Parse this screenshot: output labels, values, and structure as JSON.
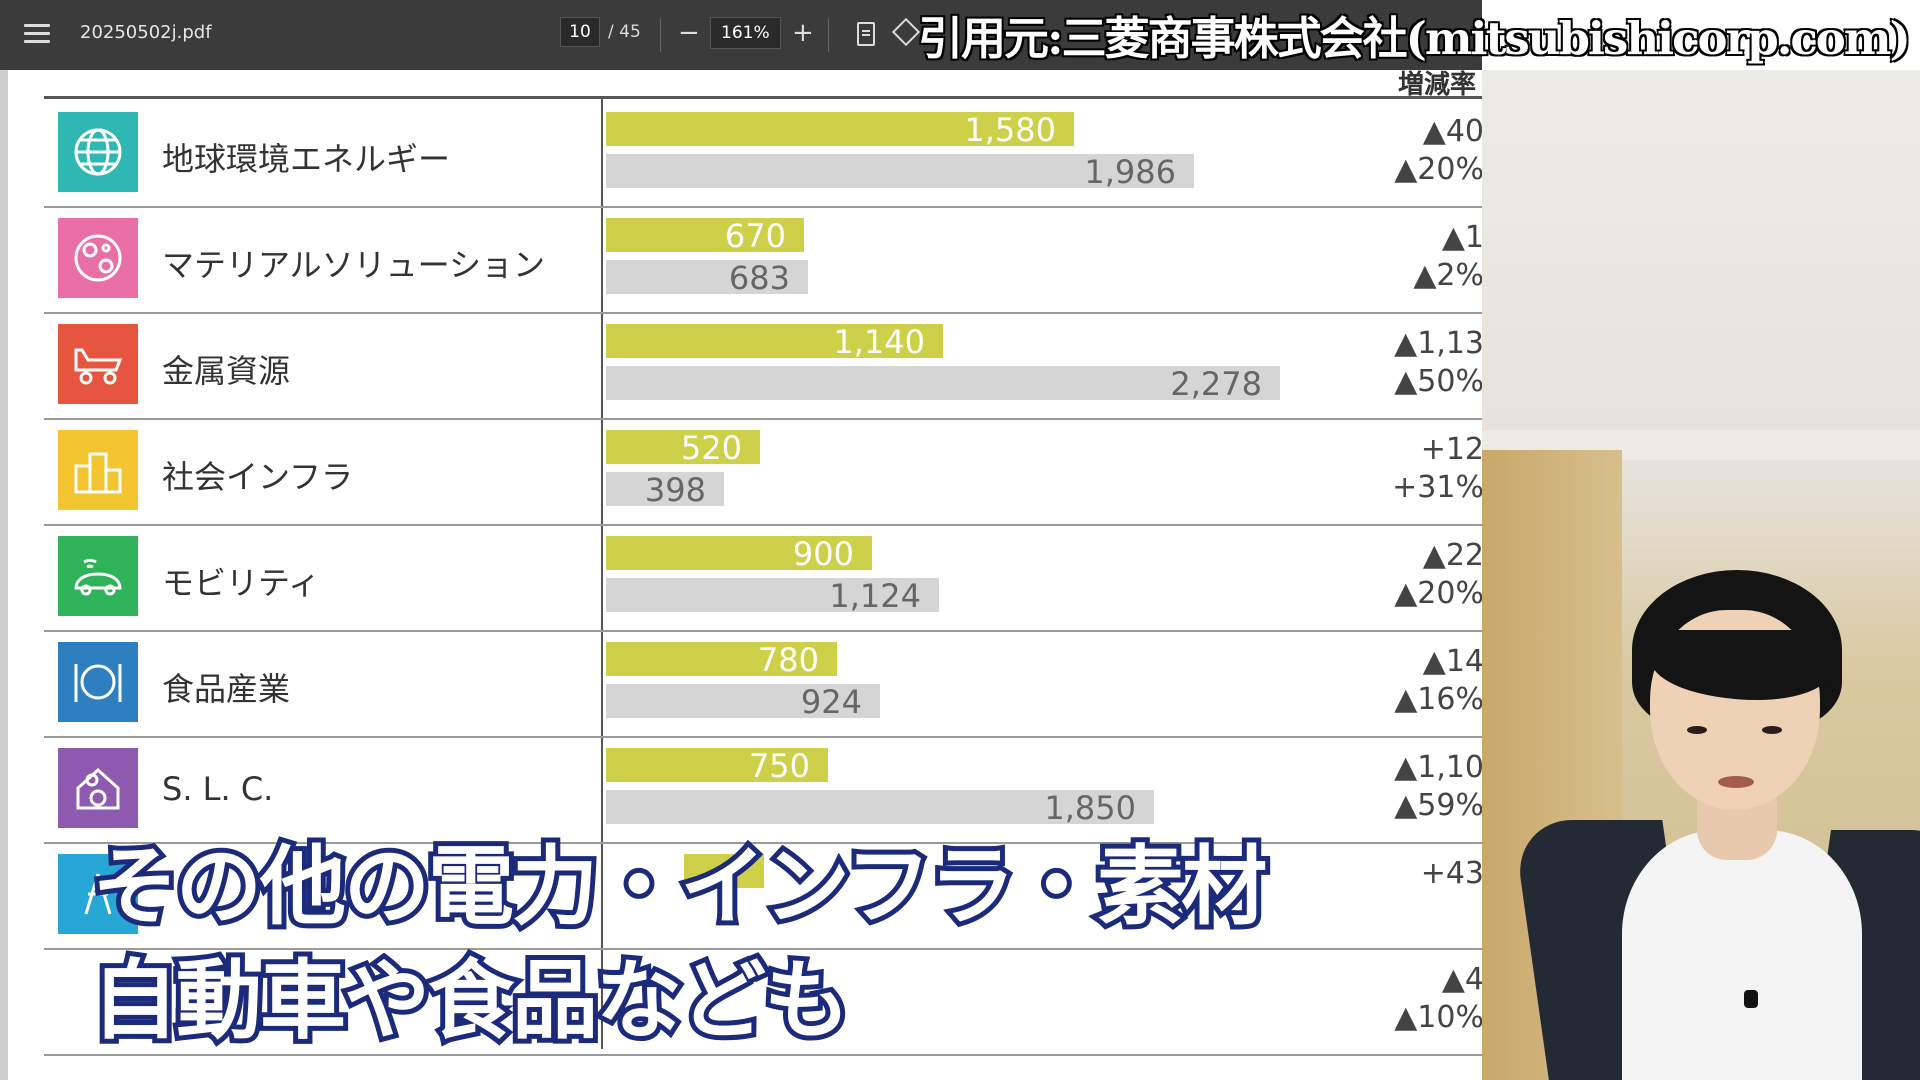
{
  "toolbar": {
    "filename": "20250502j.pdf",
    "page_current": "10",
    "page_total": "/ 45",
    "zoom": "161%",
    "zoom_out": "−",
    "zoom_in": "+"
  },
  "credit": "引用元:三菱商事株式会社(mitsubishicorp.com)",
  "table": {
    "change_header": "増減率",
    "rows": [
      {
        "name": "地球環境エネルギー",
        "icon": "globe-icon",
        "current": "1,580",
        "previous": "1,986",
        "chg1": "▲40",
        "chg2": "▲20%"
      },
      {
        "name": "マテリアルソリューション",
        "icon": "materials-icon",
        "current": "670",
        "previous": "683",
        "chg1": "▲1",
        "chg2": "▲2%"
      },
      {
        "name": "金属資源",
        "icon": "mining-truck-icon",
        "current": "1,140",
        "previous": "2,278",
        "chg1": "▲1,13",
        "chg2": "▲50%"
      },
      {
        "name": "社会インフラ",
        "icon": "city-buildings-icon",
        "current": "520",
        "previous": "398",
        "chg1": "+12",
        "chg2": "+31%"
      },
      {
        "name": "モビリティ",
        "icon": "connected-car-icon",
        "current": "900",
        "previous": "1,124",
        "chg1": "▲22",
        "chg2": "▲20%"
      },
      {
        "name": "食品産業",
        "icon": "food-plate-icon",
        "current": "780",
        "previous": "924",
        "chg1": "▲14",
        "chg2": "▲16%"
      },
      {
        "name": "S. L. C.",
        "icon": "home-person-icon",
        "current": "750",
        "previous": "1,850",
        "chg1": "▲1,10",
        "chg2": "▲59%"
      },
      {
        "name": "",
        "icon": "power-icon",
        "current": "",
        "previous": "",
        "chg1": "+43",
        "chg2": ""
      },
      {
        "name": "",
        "icon": "",
        "current": "",
        "previous": "",
        "chg1": "▲4",
        "chg2": "▲10%"
      }
    ]
  },
  "subtitle": {
    "line1": "その他の電力・インフラ・素材",
    "line2": "自動車や食品なども"
  },
  "colors": {
    "bar_current": "#cfd04a",
    "bar_previous": "#d5d5d5",
    "subtitle_outline": "#1b2a7a"
  },
  "chart_data": {
    "type": "bar",
    "categories": [
      "地球環境エネルギー",
      "マテリアルソリューション",
      "金属資源",
      "社会インフラ",
      "モビリティ",
      "食品産業",
      "S. L. C."
    ],
    "series": [
      {
        "values": [
          1580,
          670,
          1140,
          520,
          900,
          780,
          750
        ]
      },
      {
        "values": [
          1986,
          683,
          2278,
          398,
          1124,
          924,
          1850
        ]
      }
    ],
    "xlim": [
      0,
      2500
    ]
  }
}
